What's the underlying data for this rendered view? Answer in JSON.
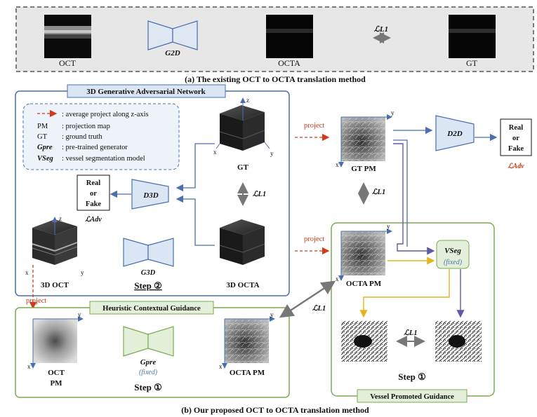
{
  "top_panel": {
    "oct_label": "OCT",
    "g2d_label": "G2D",
    "octa_label": "OCTA",
    "l1_label": "ℒL1",
    "gt_label": "GT",
    "caption": "(a) The existing OCT to OCTA translation method"
  },
  "gan_panel": {
    "title": "3D Generative Adversarial Network",
    "legend": [
      {
        "key": "- - →",
        "text": ": average project along z-axis"
      },
      {
        "key": "PM",
        "text": ": projection map"
      },
      {
        "key": "GT",
        "text": ": ground truth"
      },
      {
        "key": "Gpre",
        "text": ": pre-trained generator"
      },
      {
        "key": "VSeg",
        "text": ": vessel segmentation model"
      }
    ],
    "gt_cube_label": "GT",
    "octa_cube_label": "3D OCTA",
    "oct_cube_label": "3D OCT",
    "d3d_label": "D3D",
    "g3d_label": "G3D",
    "l1_label": "ℒL1",
    "real_fake": [
      "Real",
      "or",
      "Fake"
    ],
    "adv_label": "ℒAdv",
    "step_label": "Step ②",
    "axis_z": "z",
    "axis_x": "x",
    "axis_y": "y"
  },
  "right_top": {
    "project_1": "project",
    "project_2": "project",
    "gtpm_label": "GT PM",
    "d2d_label": "D2D",
    "real_fake": [
      "Real",
      "or",
      "Fake"
    ],
    "adv_label": "ℒAdv",
    "l1_label": "ℒL1"
  },
  "vessel_panel": {
    "title": "Vessel Promoted Guidance",
    "octapm_label": "OCTA PM",
    "vseg_label": "VSeg",
    "fixed_label": "(fixed)",
    "l1_label": "ℒL1",
    "step_label": "Step ①"
  },
  "heuristic_panel": {
    "title": "Heuristic Contextual Guidance",
    "project": "project",
    "octpm_label": [
      "OCT",
      "PM"
    ],
    "gpre_label": "Gpre",
    "fixed_label": "(fixed)",
    "octapm_label": "OCTA PM",
    "step_label": "Step ①",
    "cross_l1": "ℒL1"
  },
  "caption_b": "(b) Our proposed OCT to OCTA translation method",
  "colors": {
    "blue_arrow": "#4a6fae",
    "red_dash": "#d13a1a",
    "yellow_arrow": "#e8b21c",
    "purple_arrow": "#5f5aa2",
    "gray_arrow": "#777777",
    "green_border": "#7aaa52",
    "blue_border": "#4a6fae"
  }
}
